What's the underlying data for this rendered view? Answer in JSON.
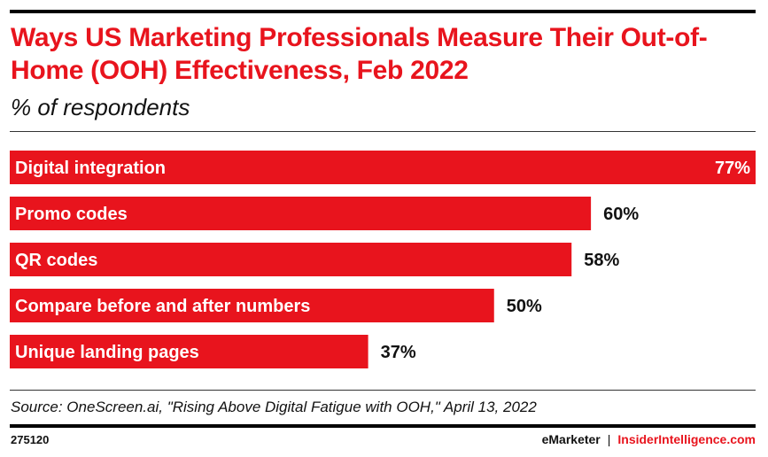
{
  "header": {
    "title": "Ways US Marketing Professionals Measure Their Out-of-Home (OOH) Effectiveness, Feb 2022",
    "subtitle": "% of respondents"
  },
  "chart_data": {
    "type": "bar",
    "orientation": "horizontal",
    "categories": [
      "Digital integration",
      "Promo codes",
      "QR codes",
      "Compare before and after numbers",
      "Unique landing pages"
    ],
    "values": [
      77,
      60,
      58,
      50,
      37
    ],
    "value_labels": [
      "77%",
      "60%",
      "58%",
      "50%",
      "37%"
    ],
    "unit": "%",
    "xlim": [
      0,
      77
    ],
    "grid": false,
    "legend": "none",
    "bar_color": "#e8141d"
  },
  "footer": {
    "source": "Source: OneScreen.ai, \"Rising Above Digital Fatigue with OOH,\" April 13, 2022",
    "chart_id": "275120",
    "brand_left": "eMarketer",
    "brand_separator": "|",
    "brand_right": "InsiderIntelligence.com"
  },
  "colors": {
    "accent": "#e8141d",
    "text": "#111111"
  }
}
